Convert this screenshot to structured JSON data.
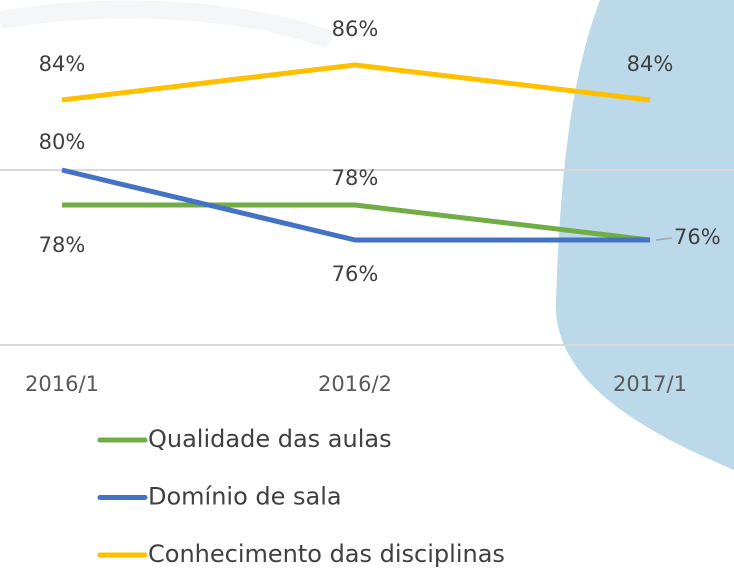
{
  "chart_data": {
    "type": "line",
    "categories": [
      "2016/1",
      "2016/2",
      "2017/1"
    ],
    "series": [
      {
        "name": "Qualidade das aulas",
        "color": "#70ad47",
        "values": [
          78,
          78,
          76
        ],
        "value_labels": [
          "78%",
          "78%",
          "76%"
        ]
      },
      {
        "name": "Domínio de sala",
        "color": "#4472c4",
        "values": [
          80,
          76,
          76
        ],
        "value_labels": [
          "80%",
          "76%",
          null
        ]
      },
      {
        "name": "Conhecimento das disciplinas",
        "color": "#ffc000",
        "values": [
          84,
          86,
          84
        ],
        "value_labels": [
          "84%",
          "86%",
          "84%"
        ]
      }
    ],
    "ylim": [
      70,
      88
    ],
    "yticks": [
      70,
      80
    ],
    "grid": true
  }
}
